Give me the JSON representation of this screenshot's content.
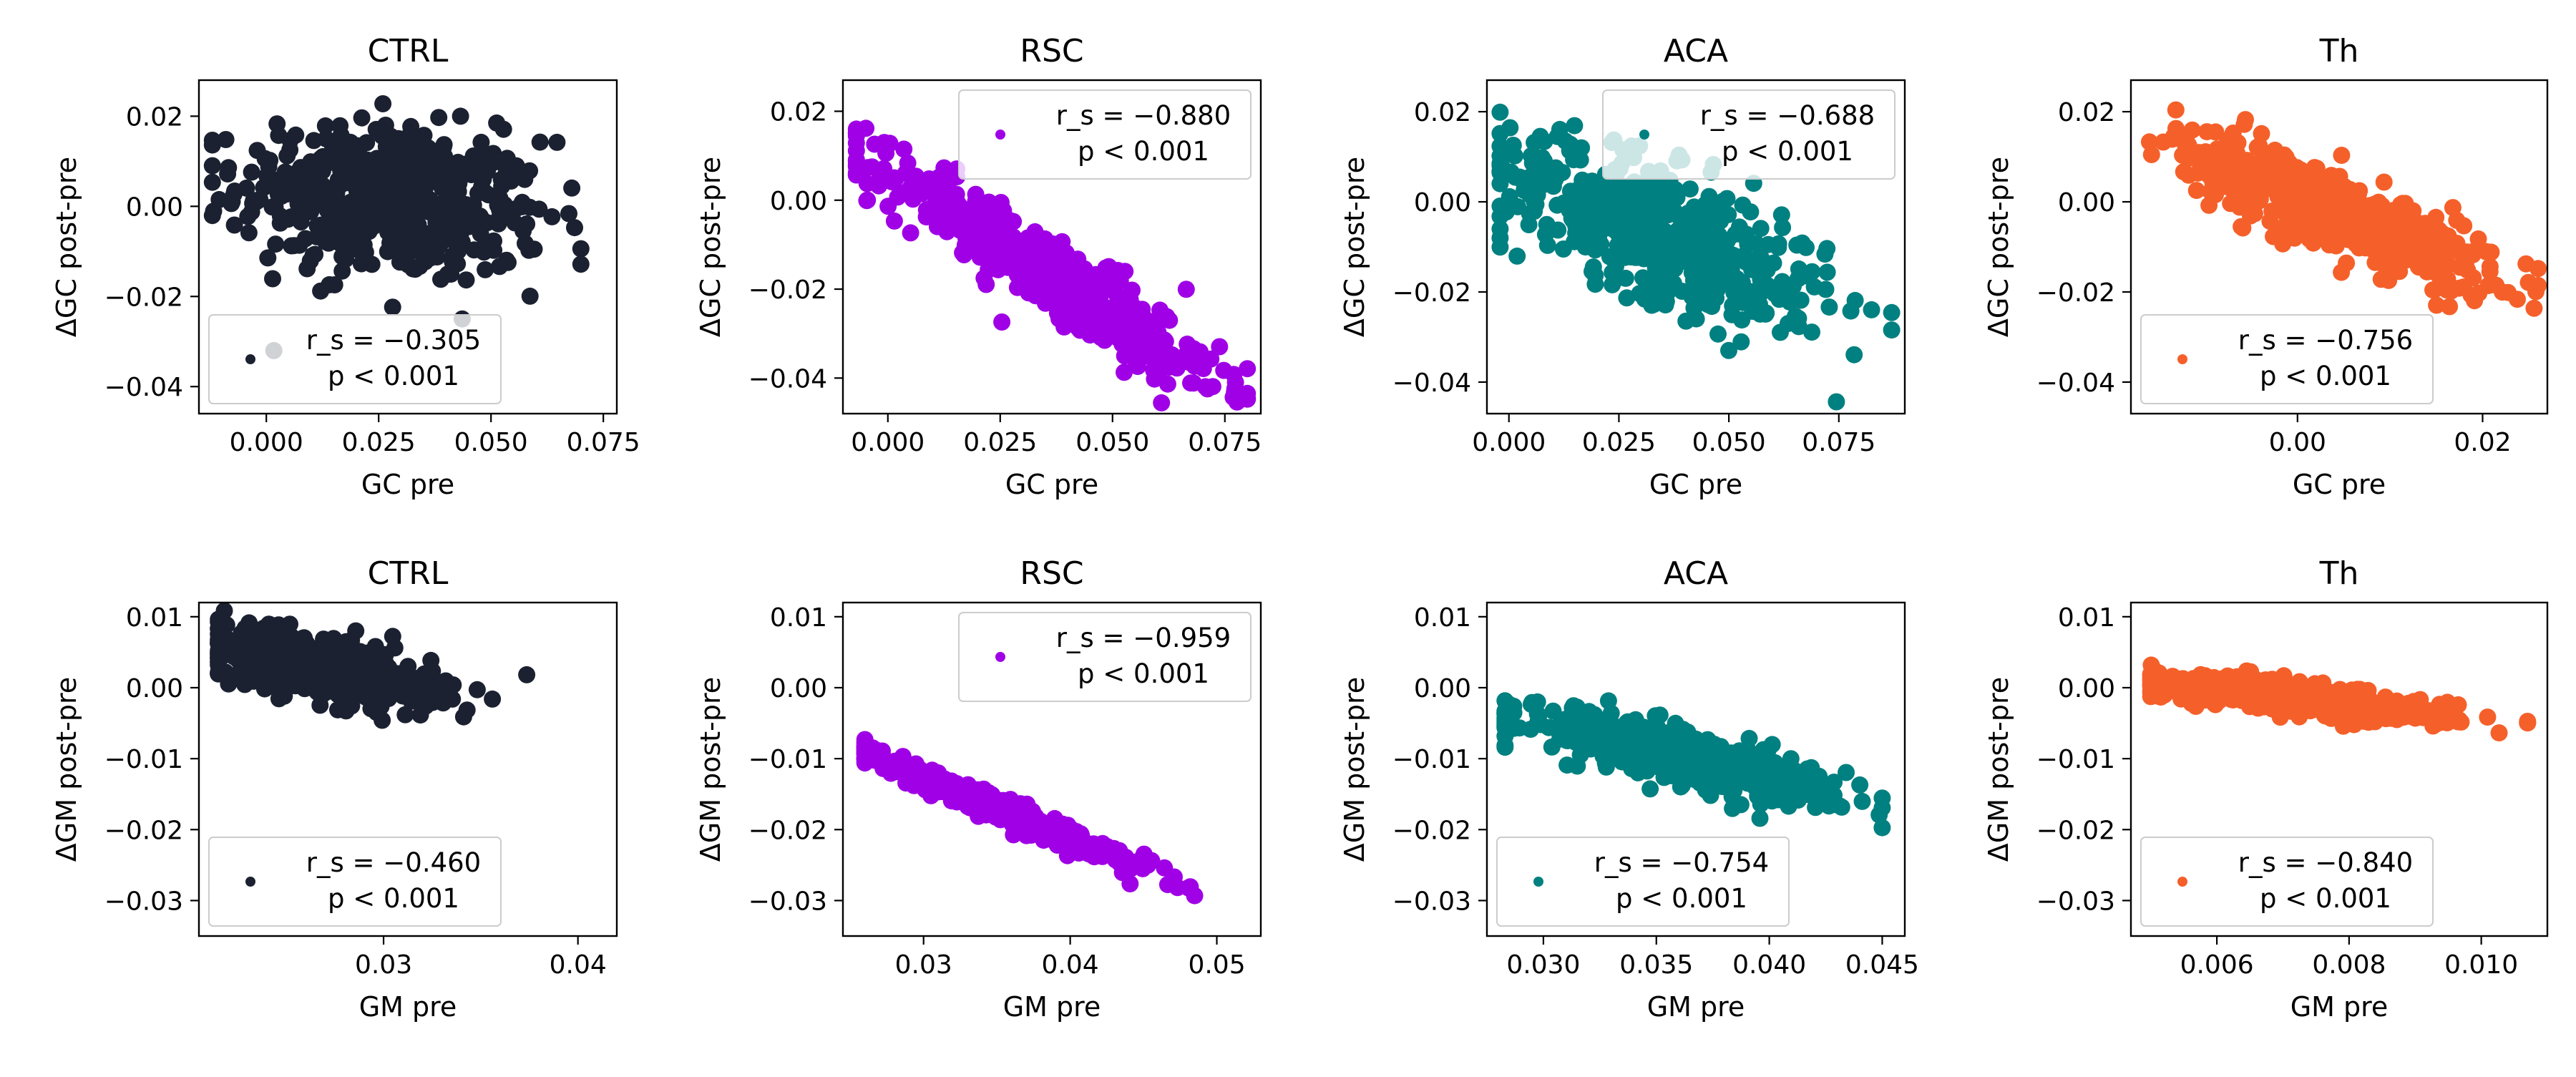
{
  "chart_data": [
    {
      "type": "scatter",
      "title": "CTRL",
      "xlabel": "GC pre",
      "ylabel": "ΔGC post-pre",
      "xlim": [
        -0.015,
        0.078
      ],
      "ylim": [
        -0.046,
        0.028
      ],
      "xticks": [
        0.0,
        0.025,
        0.05,
        0.075
      ],
      "xtick_labels": [
        "0.000",
        "0.025",
        "0.050",
        "0.075"
      ],
      "yticks": [
        0.02,
        0.0,
        -0.02,
        -0.04
      ],
      "ytick_labels": [
        "0.02",
        "0.00",
        "−0.02",
        "−0.04"
      ],
      "color": "#1b2130",
      "legend": {
        "placement": "lower-left",
        "stat": "r_s = −0.305",
        "p": "p < 0.001"
      },
      "rs": -0.305,
      "cloud": {
        "x_range": [
          -0.012,
          0.07
        ],
        "x_mean": 0.028,
        "y_mean": 0.001,
        "slope": -0.1,
        "y_spread": 0.0085,
        "x_spread": 0.017
      }
    },
    {
      "type": "scatter",
      "title": "RSC",
      "xlabel": "GC pre",
      "ylabel": "ΔGC post-pre",
      "xlim": [
        -0.01,
        0.083
      ],
      "ylim": [
        -0.048,
        0.027
      ],
      "xticks": [
        0.0,
        0.025,
        0.05,
        0.075
      ],
      "xtick_labels": [
        "0.000",
        "0.025",
        "0.050",
        "0.075"
      ],
      "yticks": [
        0.02,
        0.0,
        -0.02,
        -0.04
      ],
      "ytick_labels": [
        "0.02",
        "0.00",
        "−0.02",
        "−0.04"
      ],
      "color": "#a000e6",
      "legend": {
        "placement": "upper-right",
        "stat": "r_s = −0.880",
        "p": "p < 0.001"
      },
      "rs": -0.88,
      "cloud": {
        "x_range": [
          -0.007,
          0.08
        ],
        "x_mean": 0.035,
        "y_mean": -0.016,
        "slope": -0.62,
        "y_spread": 0.0045,
        "x_spread": 0.019
      }
    },
    {
      "type": "scatter",
      "title": "ACA",
      "xlabel": "GC pre",
      "ylabel": "ΔGC post-pre",
      "xlim": [
        -0.005,
        0.09
      ],
      "ylim": [
        -0.047,
        0.027
      ],
      "xticks": [
        0.0,
        0.025,
        0.05,
        0.075
      ],
      "xtick_labels": [
        "0.000",
        "0.025",
        "0.050",
        "0.075"
      ],
      "yticks": [
        0.02,
        0.0,
        -0.02,
        -0.04
      ],
      "ytick_labels": [
        "0.02",
        "0.00",
        "−0.02",
        "−0.04"
      ],
      "color": "#008080",
      "legend": {
        "placement": "upper-right",
        "stat": "r_s = −0.688",
        "p": "p < 0.001"
      },
      "rs": -0.688,
      "cloud": {
        "x_range": [
          -0.002,
          0.087
        ],
        "x_mean": 0.035,
        "y_mean": -0.007,
        "slope": -0.4,
        "y_spread": 0.0075,
        "x_spread": 0.019
      }
    },
    {
      "type": "scatter",
      "title": "Th",
      "xlabel": "GC pre",
      "ylabel": "ΔGC post-pre",
      "xlim": [
        -0.018,
        0.027
      ],
      "ylim": [
        -0.047,
        0.027
      ],
      "xticks": [
        0.0,
        0.02
      ],
      "xtick_labels": [
        "0.00",
        "0.02"
      ],
      "yticks": [
        0.02,
        0.0,
        -0.02,
        -0.04
      ],
      "ytick_labels": [
        "0.02",
        "0.00",
        "−0.02",
        "−0.04"
      ],
      "color": "#f5602a",
      "legend": {
        "placement": "lower-left",
        "stat": "r_s = −0.756",
        "p": "p < 0.001"
      },
      "rs": -0.756,
      "cloud": {
        "x_range": [
          -0.016,
          0.026
        ],
        "x_mean": 0.004,
        "y_mean": -0.002,
        "slope": -0.82,
        "y_spread": 0.0045,
        "x_spread": 0.0085
      }
    },
    {
      "type": "scatter",
      "title": "CTRL",
      "xlabel": "GM pre",
      "ylabel": "ΔGM post-pre",
      "xlim": [
        0.0205,
        0.042
      ],
      "ylim": [
        -0.035,
        0.012
      ],
      "xticks": [
        0.03,
        0.04
      ],
      "xtick_labels": [
        "0.03",
        "0.04"
      ],
      "yticks": [
        0.01,
        0.0,
        -0.01,
        -0.02,
        -0.03
      ],
      "ytick_labels": [
        "0.01",
        "0.00",
        "−0.01",
        "−0.02",
        "−0.03"
      ],
      "color": "#1b2130",
      "legend": {
        "placement": "lower-left",
        "stat": "r_s = −0.460",
        "p": "p < 0.001"
      },
      "rs": -0.46,
      "cloud": {
        "x_range": [
          0.0215,
          0.041
        ],
        "x_mean": 0.0265,
        "y_mean": 0.003,
        "slope": -0.55,
        "y_spread": 0.0022,
        "x_spread": 0.003
      }
    },
    {
      "type": "scatter",
      "title": "RSC",
      "xlabel": "GM pre",
      "ylabel": "ΔGM post-pre",
      "xlim": [
        0.0245,
        0.053
      ],
      "ylim": [
        -0.035,
        0.012
      ],
      "xticks": [
        0.03,
        0.04,
        0.05
      ],
      "xtick_labels": [
        "0.03",
        "0.04",
        "0.05"
      ],
      "yticks": [
        0.01,
        0.0,
        -0.01,
        -0.02,
        -0.03
      ],
      "ytick_labels": [
        "0.01",
        "0.00",
        "−0.01",
        "−0.02",
        "−0.03"
      ],
      "color": "#a000e6",
      "legend": {
        "placement": "upper-right",
        "stat": "r_s = −0.959",
        "p": "p < 0.001"
      },
      "rs": -0.959,
      "cloud": {
        "x_range": [
          0.026,
          0.0518
        ],
        "x_mean": 0.035,
        "y_mean": -0.017,
        "slope": -0.87,
        "y_spread": 0.0008,
        "x_spread": 0.0055
      }
    },
    {
      "type": "scatter",
      "title": "ACA",
      "xlabel": "GM pre",
      "ylabel": "ΔGM post-pre",
      "xlim": [
        0.0275,
        0.046
      ],
      "ylim": [
        -0.035,
        0.012
      ],
      "xticks": [
        0.03,
        0.035,
        0.04,
        0.045
      ],
      "xtick_labels": [
        "0.030",
        "0.035",
        "0.040",
        "0.045"
      ],
      "yticks": [
        0.01,
        0.0,
        -0.01,
        -0.02,
        -0.03
      ],
      "ytick_labels": [
        "0.01",
        "0.00",
        "−0.01",
        "−0.02",
        "−0.03"
      ],
      "color": "#008080",
      "legend": {
        "placement": "lower-left",
        "stat": "r_s = −0.754",
        "p": "p < 0.001"
      },
      "rs": -0.754,
      "cloud": {
        "x_range": [
          0.0283,
          0.045
        ],
        "x_mean": 0.036,
        "y_mean": -0.0095,
        "slope": -0.72,
        "y_spread": 0.0018,
        "x_spread": 0.0035
      }
    },
    {
      "type": "scatter",
      "title": "Th",
      "xlabel": "GM pre",
      "ylabel": "ΔGM post-pre",
      "xlim": [
        0.0047,
        0.011
      ],
      "ylim": [
        -0.035,
        0.012
      ],
      "xticks": [
        0.006,
        0.008,
        0.01
      ],
      "xtick_labels": [
        "0.006",
        "0.008",
        "0.010"
      ],
      "yticks": [
        0.01,
        0.0,
        -0.01,
        -0.02,
        -0.03
      ],
      "ytick_labels": [
        "0.01",
        "0.00",
        "−0.01",
        "−0.02",
        "−0.03"
      ],
      "color": "#f5602a",
      "legend": {
        "placement": "lower-left",
        "stat": "r_s = −0.840",
        "p": "p < 0.001"
      },
      "rs": -0.84,
      "cloud": {
        "x_range": [
          0.005,
          0.0107
        ],
        "x_mean": 0.0072,
        "y_mean": -0.0015,
        "slope": -1.1,
        "y_spread": 0.0011,
        "x_spread": 0.0012
      }
    }
  ]
}
